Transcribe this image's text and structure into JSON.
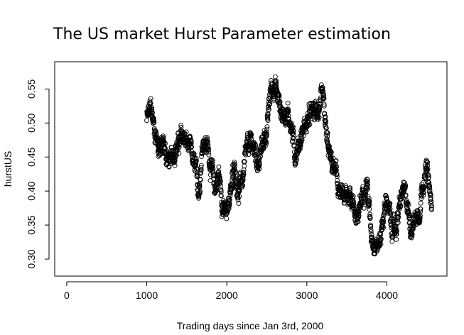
{
  "chart_data": {
    "type": "scatter",
    "title": "The US market Hurst Parameter estimation",
    "xlabel": "Trading days since Jan 3rd, 2000",
    "ylabel": "hurstUS",
    "xlim": [
      -150,
      4750
    ],
    "ylim": [
      0.275,
      0.59
    ],
    "xticks": [
      0,
      1000,
      2000,
      3000,
      4000
    ],
    "yticks": [
      0.3,
      0.35,
      0.4,
      0.45,
      0.5,
      0.55
    ],
    "xtick_labels": [
      "0",
      "1000",
      "2000",
      "3000",
      "4000"
    ],
    "ytick_labels": [
      "0.30",
      "0.35",
      "0.40",
      "0.45",
      "0.50",
      "0.55"
    ],
    "marker": "open-circle",
    "grid": false,
    "legend": "none",
    "series": [
      {
        "x_start": 1000,
        "x_end": 4560,
        "trend_x": [
          1000,
          1050,
          1100,
          1150,
          1200,
          1250,
          1300,
          1350,
          1400,
          1450,
          1500,
          1550,
          1600,
          1650,
          1700,
          1750,
          1800,
          1850,
          1900,
          1950,
          2000,
          2050,
          2100,
          2150,
          2200,
          2250,
          2300,
          2350,
          2400,
          2450,
          2500,
          2550,
          2600,
          2650,
          2700,
          2750,
          2800,
          2850,
          2900,
          2950,
          3000,
          3050,
          3100,
          3150,
          3200,
          3250,
          3300,
          3350,
          3400,
          3450,
          3500,
          3550,
          3600,
          3650,
          3700,
          3750,
          3800,
          3850,
          3900,
          3950,
          4000,
          4050,
          4100,
          4150,
          4200,
          4250,
          4300,
          4350,
          4400,
          4450,
          4500,
          4560
        ],
        "trend_y": [
          0.505,
          0.52,
          0.49,
          0.465,
          0.47,
          0.45,
          0.44,
          0.465,
          0.47,
          0.48,
          0.47,
          0.455,
          0.43,
          0.4,
          0.48,
          0.47,
          0.44,
          0.4,
          0.425,
          0.38,
          0.36,
          0.41,
          0.43,
          0.4,
          0.42,
          0.455,
          0.47,
          0.46,
          0.44,
          0.47,
          0.49,
          0.55,
          0.56,
          0.53,
          0.51,
          0.52,
          0.5,
          0.455,
          0.47,
          0.49,
          0.5,
          0.51,
          0.515,
          0.52,
          0.53,
          0.47,
          0.44,
          0.43,
          0.4,
          0.385,
          0.39,
          0.4,
          0.37,
          0.36,
          0.4,
          0.42,
          0.34,
          0.33,
          0.32,
          0.36,
          0.39,
          0.35,
          0.34,
          0.37,
          0.4,
          0.38,
          0.35,
          0.36,
          0.37,
          0.42,
          0.43,
          0.37
        ],
        "noise": 0.016,
        "point_count": 2000
      }
    ]
  }
}
